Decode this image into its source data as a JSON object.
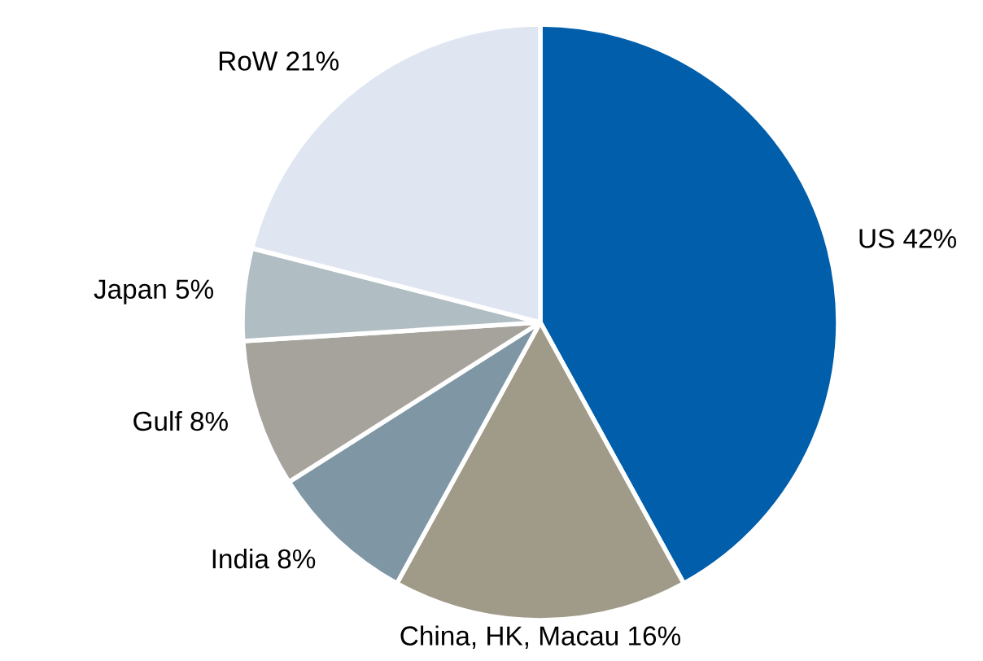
{
  "chart_data": {
    "type": "pie",
    "categories": [
      "US",
      "China, HK, Macau",
      "India",
      "Gulf",
      "Japan",
      "RoW"
    ],
    "values": [
      42,
      16,
      8,
      8,
      5,
      21
    ],
    "value_labels": [
      "42%",
      "16%",
      "8%",
      "8%",
      "5%",
      "21%"
    ],
    "colors": [
      "#005eaa",
      "#a09a88",
      "#7f97a5",
      "#a6a29c",
      "#b0bec4",
      "#dfe5f1"
    ],
    "legend": false
  }
}
